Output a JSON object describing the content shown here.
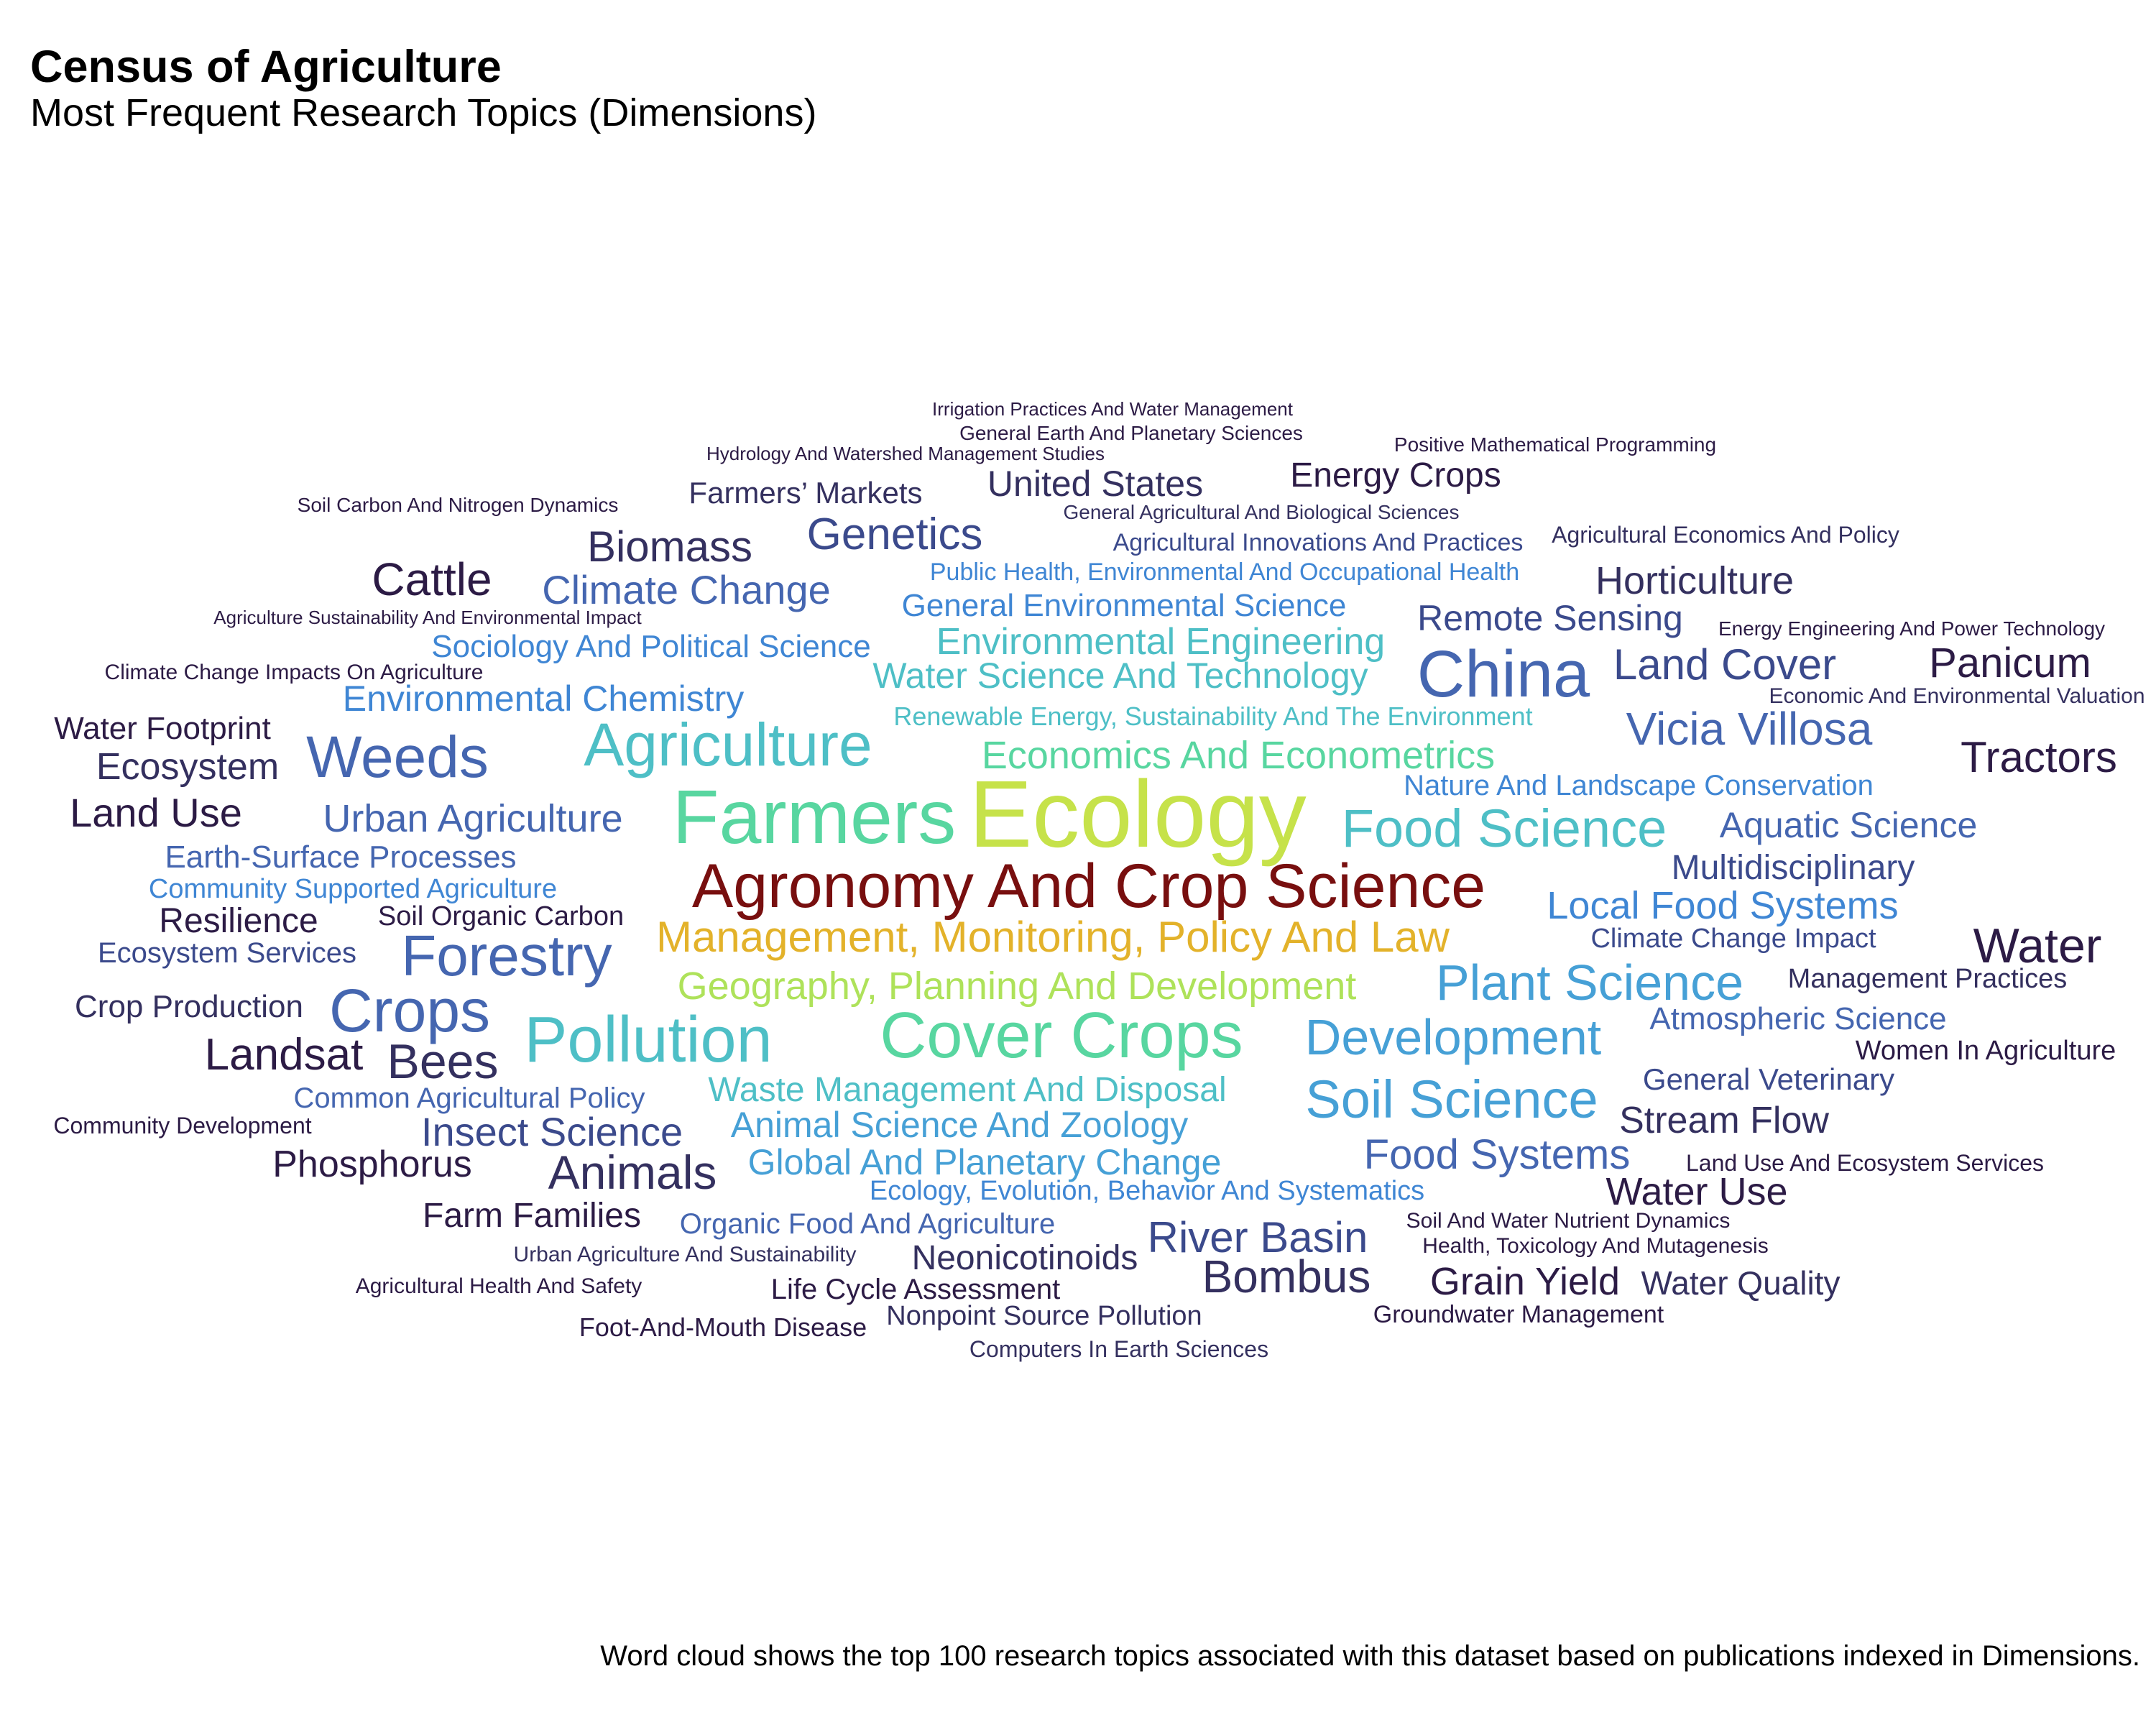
{
  "title": "Census of Agriculture",
  "subtitle": "Most Frequent Research Topics (Dimensions)",
  "caption": "Word cloud shows the top 100 research topics associated with this dataset based on publications indexed in Dimensions.",
  "colors": {
    "c0": "#2c1b45",
    "c1": "#34305f",
    "c2": "#3b4a8c",
    "c3": "#4566b0",
    "c4": "#3f86d4",
    "c5": "#46a0d6",
    "c6": "#4ebfc6",
    "c7": "#58d6a0",
    "c8": "#aee25a",
    "c9": "#c6e24a",
    "c10": "#e3b22a",
    "c11": "#780f0f"
  },
  "chart_data": {
    "type": "wordcloud",
    "words": [
      {
        "text": "Ecology",
        "color": "c9"
      },
      {
        "text": "Farmers",
        "color": "c7"
      },
      {
        "text": "Agronomy And Crop Science",
        "color": "c11"
      },
      {
        "text": "Cover Crops",
        "color": "c7"
      },
      {
        "text": "Pollution",
        "color": "c6"
      },
      {
        "text": "Agriculture",
        "color": "c6"
      },
      {
        "text": "China",
        "color": "c3"
      },
      {
        "text": "Crops",
        "color": "c3"
      },
      {
        "text": "Weeds",
        "color": "c3"
      },
      {
        "text": "Management, Monitoring, Policy And Law",
        "color": "c10"
      },
      {
        "text": "Food Science",
        "color": "c6"
      },
      {
        "text": "Forestry",
        "color": "c3"
      },
      {
        "text": "Soil Science",
        "color": "c5"
      },
      {
        "text": "Development",
        "color": "c5"
      },
      {
        "text": "Plant Science",
        "color": "c5"
      },
      {
        "text": "Bees",
        "color": "c1"
      },
      {
        "text": "Animals",
        "color": "c1"
      },
      {
        "text": "Vicia Villosa",
        "color": "c3"
      },
      {
        "text": "Cattle",
        "color": "c0"
      },
      {
        "text": "Water",
        "color": "c0"
      },
      {
        "text": "Geography, Planning And Development",
        "color": "c8"
      },
      {
        "text": "Economics And Econometrics",
        "color": "c7"
      },
      {
        "text": "Genetics",
        "color": "c2"
      },
      {
        "text": "Tractors",
        "color": "c0"
      },
      {
        "text": "Landsat",
        "color": "c0"
      },
      {
        "text": "Bombus",
        "color": "c1"
      },
      {
        "text": "River Basin",
        "color": "c2"
      },
      {
        "text": "Food Systems",
        "color": "c3"
      },
      {
        "text": "Land Cover",
        "color": "c2"
      },
      {
        "text": "Panicum",
        "color": "c0"
      },
      {
        "text": "Biomass",
        "color": "c1"
      },
      {
        "text": "Climate Change",
        "color": "c3"
      },
      {
        "text": "Local Food Systems",
        "color": "c4"
      },
      {
        "text": "Grain Yield",
        "color": "c0"
      },
      {
        "text": "Environmental Engineering",
        "color": "c6"
      },
      {
        "text": "Water Science And Technology",
        "color": "c6"
      },
      {
        "text": "Urban Agriculture",
        "color": "c3"
      },
      {
        "text": "Insect Science",
        "color": "c2"
      },
      {
        "text": "Land Use",
        "color": "c0"
      },
      {
        "text": "Environmental Chemistry",
        "color": "c4"
      },
      {
        "text": "Remote Sensing",
        "color": "c2"
      },
      {
        "text": "Horticulture",
        "color": "c1"
      },
      {
        "text": "Global And Planetary Change",
        "color": "c5"
      },
      {
        "text": "Waste Management And Disposal",
        "color": "c6"
      },
      {
        "text": "Animal Science And Zoology",
        "color": "c5"
      },
      {
        "text": "Aquatic Science",
        "color": "c3"
      },
      {
        "text": "Ecosystem",
        "color": "c1"
      },
      {
        "text": "Phosphorus",
        "color": "c0"
      },
      {
        "text": "Stream Flow",
        "color": "c1"
      },
      {
        "text": "Water Use",
        "color": "c0"
      },
      {
        "text": "Energy Crops",
        "color": "c0"
      },
      {
        "text": "United States",
        "color": "c1"
      },
      {
        "text": "Multidisciplinary",
        "color": "c2"
      },
      {
        "text": "Resilience",
        "color": "c0"
      },
      {
        "text": "Water Quality",
        "color": "c1"
      },
      {
        "text": "Neonicotinoids",
        "color": "c1"
      },
      {
        "text": "Farm Families",
        "color": "c0"
      },
      {
        "text": "General Environmental Science",
        "color": "c4"
      },
      {
        "text": "Atmospheric Science",
        "color": "c3"
      },
      {
        "text": "Sociology And Political Science",
        "color": "c4"
      },
      {
        "text": "Earth-Surface Processes",
        "color": "c3"
      },
      {
        "text": "Common Agricultural Policy",
        "color": "c3"
      },
      {
        "text": "General Veterinary",
        "color": "c2"
      },
      {
        "text": "Farmers’ Markets",
        "color": "c1"
      },
      {
        "text": "Water Footprint",
        "color": "c0"
      },
      {
        "text": "Nature And Landscape Conservation",
        "color": "c4"
      },
      {
        "text": "Organic Food And Agriculture",
        "color": "c3"
      },
      {
        "text": "Ecosystem Services",
        "color": "c2"
      },
      {
        "text": "Climate Change Impact",
        "color": "c2"
      },
      {
        "text": "Crop Production",
        "color": "c1"
      },
      {
        "text": "Life Cycle Assessment",
        "color": "c0"
      },
      {
        "text": "Soil Organic Carbon",
        "color": "c0"
      },
      {
        "text": "Women In Agriculture",
        "color": "c0"
      },
      {
        "text": "Renewable Energy, Sustainability And The Environment",
        "color": "c6"
      },
      {
        "text": "Ecology, Evolution, Behavior And Systematics",
        "color": "c4"
      },
      {
        "text": "Community Supported Agriculture",
        "color": "c4"
      },
      {
        "text": "Management Practices",
        "color": "c1"
      },
      {
        "text": "Agricultural Innovations And Practices",
        "color": "c2"
      },
      {
        "text": "Public Health, Environmental And Occupational Health",
        "color": "c4"
      },
      {
        "text": "Nonpoint Source Pollution",
        "color": "c1"
      },
      {
        "text": "Foot-And-Mouth Disease",
        "color": "c0"
      },
      {
        "text": "Agricultural Economics And Policy",
        "color": "c1"
      },
      {
        "text": "Groundwater Management",
        "color": "c0"
      },
      {
        "text": "Community Development",
        "color": "c0"
      },
      {
        "text": "Land Use And Ecosystem Services",
        "color": "c0"
      },
      {
        "text": "Computers In Earth Sciences",
        "color": "c1"
      },
      {
        "text": "Economic And Environmental Valuation",
        "color": "c1"
      },
      {
        "text": "Irrigation Practices And Water Management",
        "color": "c0"
      },
      {
        "text": "General Earth And Planetary Sciences",
        "color": "c0"
      },
      {
        "text": "Positive Mathematical Programming",
        "color": "c0"
      },
      {
        "text": "Soil Carbon And Nitrogen Dynamics",
        "color": "c0"
      },
      {
        "text": "Energy Engineering And Power Technology",
        "color": "c0"
      },
      {
        "text": "Hydrology And Watershed Management Studies",
        "color": "c0"
      },
      {
        "text": "General Agricultural And Biological Sciences",
        "color": "c1"
      },
      {
        "text": "Agriculture Sustainability And Environmental Impact",
        "color": "c0"
      },
      {
        "text": "Climate Change Impacts On Agriculture",
        "color": "c0"
      },
      {
        "text": "Soil And Water Nutrient Dynamics",
        "color": "c0"
      },
      {
        "text": "Health, Toxicology And Mutagenesis",
        "color": "c0"
      },
      {
        "text": "Urban Agriculture And Sustainability",
        "color": "c1"
      },
      {
        "text": "Agricultural Health And Safety",
        "color": "c0"
      }
    ]
  }
}
